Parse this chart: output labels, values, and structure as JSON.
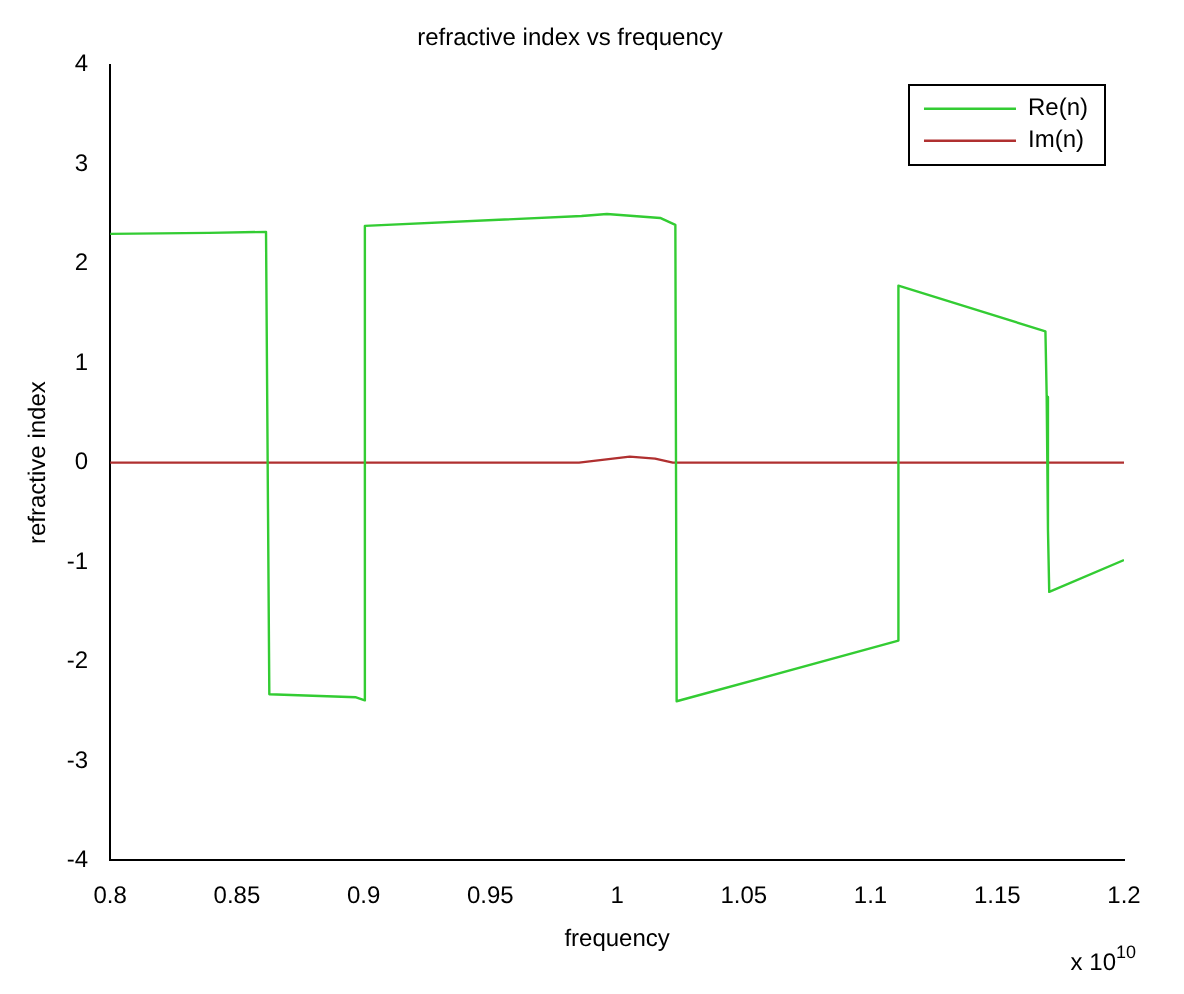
{
  "chart_data": {
    "type": "line",
    "title": "refractive index vs frequency",
    "xlabel": "frequency",
    "ylabel": "refractive index",
    "annotations": [
      "x 10$^{10}$"
    ],
    "series": [
      {
        "name": "Re(n)",
        "color": "#33cc33",
        "x": [
          0.8,
          0.839,
          0.8615,
          0.8628,
          0.897,
          0.9005,
          0.9005,
          0.986,
          0.996,
          1.017,
          1.023,
          1.0235,
          1.111,
          1.111,
          1.169,
          1.1695,
          1.17,
          1.1705,
          1.2
        ],
        "values": [
          2.3,
          2.31,
          2.32,
          -2.33,
          -2.36,
          -2.39,
          2.38,
          2.48,
          2.5,
          2.46,
          2.39,
          -2.4,
          -1.79,
          1.78,
          1.32,
          0.66,
          -0.67,
          -1.3,
          -0.98
        ]
      },
      {
        "name": "Im(n)",
        "color": "#b03030",
        "x": [
          0.8,
          0.985,
          0.995,
          1.005,
          1.015,
          1.022,
          1.2
        ],
        "values": [
          0,
          0,
          0.03,
          0.06,
          0.04,
          0,
          0
        ]
      }
    ],
    "xlim": [
      0.8,
      1.2
    ],
    "xticks": [
      0.8,
      0.85,
      0.9,
      0.95,
      1,
      1.05,
      1.1,
      1.15,
      1.2
    ],
    "ylim": [
      -4,
      4
    ],
    "yticks": [
      -4,
      -3,
      -2,
      -1,
      0,
      1,
      2,
      3,
      4
    ],
    "grid": false,
    "legend": "top right",
    "marker": "none",
    "line_style": "solid"
  }
}
